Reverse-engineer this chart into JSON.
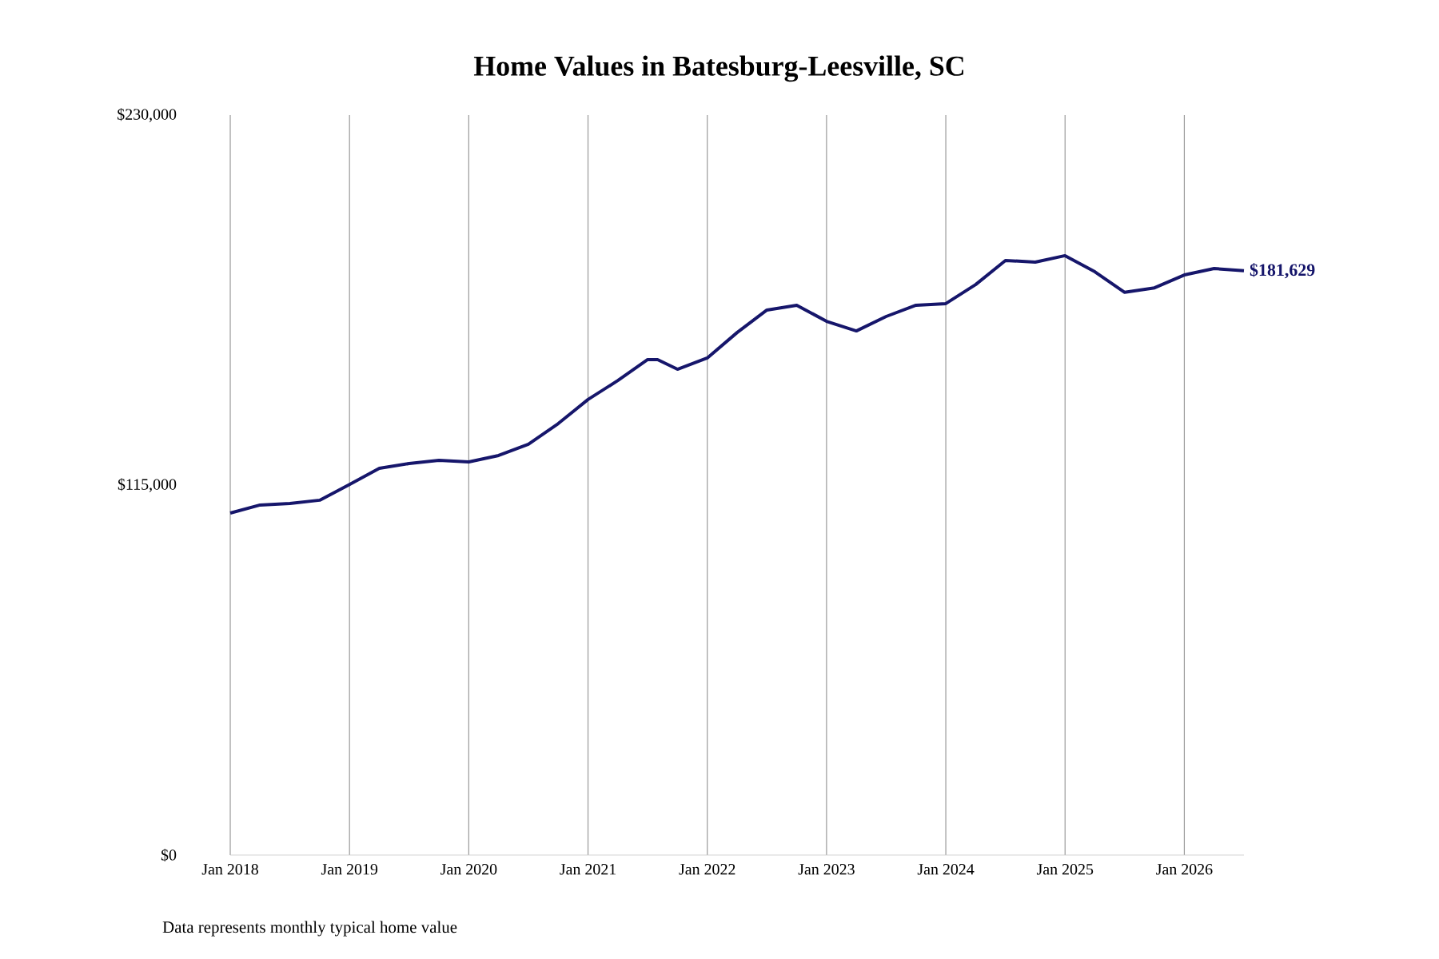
{
  "chart_data": {
    "type": "line",
    "title": "Home Values in Batesburg-Leesville, SC",
    "x": [
      "2018-01",
      "2018-04",
      "2018-07",
      "2018-10",
      "2019-01",
      "2019-04",
      "2019-07",
      "2019-10",
      "2020-01",
      "2020-04",
      "2020-07",
      "2020-10",
      "2021-01",
      "2021-04",
      "2021-07",
      "2021-08",
      "2021-10",
      "2022-01",
      "2022-04",
      "2022-07",
      "2022-10",
      "2023-01",
      "2023-04",
      "2023-07",
      "2023-10",
      "2024-01",
      "2024-04",
      "2024-07",
      "2024-10",
      "2025-01",
      "2025-04",
      "2025-07",
      "2025-10",
      "2026-01",
      "2026-04",
      "2026-07"
    ],
    "series": [
      {
        "color": "#16166b",
        "values": [
          106300,
          108800,
          109300,
          110300,
          115200,
          120200,
          121700,
          122700,
          122200,
          124200,
          127700,
          134100,
          141600,
          147500,
          154000,
          154000,
          151000,
          154500,
          162400,
          169400,
          170900,
          165900,
          162900,
          167400,
          170900,
          171400,
          177300,
          184800,
          184300,
          186300,
          181300,
          174900,
          176300,
          180300,
          182300,
          181629
        ]
      }
    ],
    "xticks": [
      {
        "value": "2018-01",
        "label": "Jan 2018"
      },
      {
        "value": "2019-01",
        "label": "Jan 2019"
      },
      {
        "value": "2020-01",
        "label": "Jan 2020"
      },
      {
        "value": "2021-01",
        "label": "Jan 2021"
      },
      {
        "value": "2022-01",
        "label": "Jan 2022"
      },
      {
        "value": "2023-01",
        "label": "Jan 2023"
      },
      {
        "value": "2024-01",
        "label": "Jan 2024"
      },
      {
        "value": "2025-01",
        "label": "Jan 2025"
      },
      {
        "value": "2026-01",
        "label": "Jan 2026"
      }
    ],
    "xlim": [
      "2018-01",
      "2026-07"
    ],
    "ylim": [
      0,
      230000
    ],
    "yticks": [
      {
        "value": 0,
        "label": "$0"
      },
      {
        "value": 115000,
        "label": "$115,000"
      },
      {
        "value": 230000,
        "label": "$230,000"
      }
    ],
    "grid": "x",
    "marker": "none",
    "line_style": "solid",
    "annotations": [
      {
        "text": "$181,629",
        "x": "2026-07",
        "y": 181629
      },
      "Data represents monthly typical home value"
    ]
  }
}
